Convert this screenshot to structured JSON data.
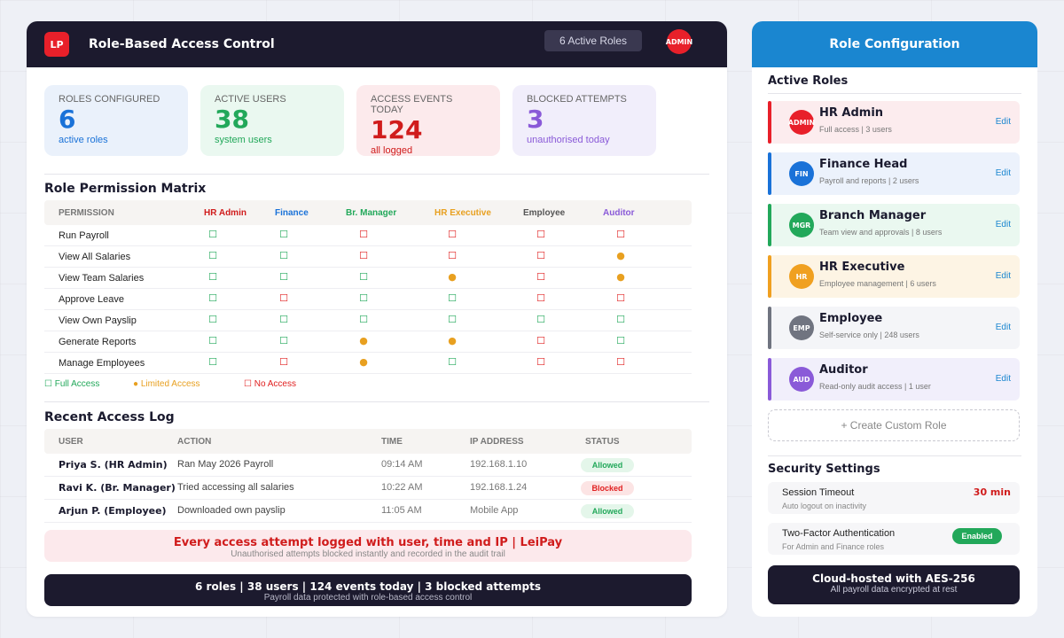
{
  "header": {
    "logo": "LP",
    "title": "Role-Based Access Control",
    "active_roles": "6 Active Roles",
    "user_badge": "ADMIN"
  },
  "stats": [
    {
      "label": "ROLES CONFIGURED",
      "value": "6",
      "sub": "active roles",
      "color": "#1a72d8",
      "bg": "#eaf1fb"
    },
    {
      "label": "ACTIVE USERS",
      "value": "38",
      "sub": "system users",
      "color": "#22a85a",
      "bg": "#eaf8f0"
    },
    {
      "label": "ACCESS EVENTS TODAY",
      "value": "124",
      "sub": "all logged",
      "color": "#d01c1c",
      "bg": "#fceaec"
    },
    {
      "label": "BLOCKED ATTEMPTS",
      "value": "3",
      "sub": "unauthorised today",
      "color": "#8a5ad8",
      "bg": "#f1eefb"
    }
  ],
  "matrix": {
    "title": "Role Permission Matrix",
    "permission_header": "PERMISSION",
    "roles": [
      {
        "name": "HR Admin",
        "color": "#d01c1c"
      },
      {
        "name": "Finance",
        "color": "#1a72d8"
      },
      {
        "name": "Br. Manager",
        "color": "#22a85a"
      },
      {
        "name": "HR Executive",
        "color": "#e8a020"
      },
      {
        "name": "Employee",
        "color": "#555555"
      },
      {
        "name": "Auditor",
        "color": "#8a5ad8"
      }
    ],
    "rows": [
      {
        "permission": "Run Payroll",
        "cells": [
          "full",
          "full",
          "none",
          "none",
          "none",
          "none"
        ]
      },
      {
        "permission": "View All Salaries",
        "cells": [
          "full",
          "full",
          "none",
          "none",
          "none",
          "limited"
        ]
      },
      {
        "permission": "View Team Salaries",
        "cells": [
          "full",
          "full",
          "full",
          "limited",
          "none",
          "limited"
        ]
      },
      {
        "permission": "Approve Leave",
        "cells": [
          "full",
          "none",
          "full",
          "full",
          "none",
          "none"
        ]
      },
      {
        "permission": "View Own Payslip",
        "cells": [
          "full",
          "full",
          "full",
          "full",
          "full",
          "full"
        ]
      },
      {
        "permission": "Generate Reports",
        "cells": [
          "full",
          "full",
          "limited",
          "limited",
          "none",
          "full"
        ]
      },
      {
        "permission": "Manage Employees",
        "cells": [
          "full",
          "none",
          "limited",
          "full",
          "none",
          "none"
        ]
      }
    ],
    "symbols": {
      "full": "☐",
      "limited": "●",
      "none": "☐"
    },
    "legend": {
      "full": "☐ Full Access",
      "limited": "● Limited Access",
      "none": "☐ No Access"
    }
  },
  "log": {
    "title": "Recent Access Log",
    "headers": [
      "USER",
      "ACTION",
      "TIME",
      "IP ADDRESS",
      "STATUS"
    ],
    "rows": [
      {
        "user": "Priya S. (HR Admin)",
        "action": "Ran May 2026 Payroll",
        "time": "09:14 AM",
        "ip": "192.168.1.10",
        "status": "Allowed"
      },
      {
        "user": "Ravi K. (Br. Manager)",
        "action": "Tried accessing all salaries",
        "time": "10:22 AM",
        "ip": "192.168.1.24",
        "status": "Blocked"
      },
      {
        "user": "Arjun P. (Employee)",
        "action": "Downloaded own payslip",
        "time": "11:05 AM",
        "ip": "Mobile App",
        "status": "Allowed"
      }
    ]
  },
  "notice": {
    "main": "Every access attempt logged with user, time and IP | LeiPay",
    "sub": "Unauthorised attempts blocked instantly and recorded in the audit trail"
  },
  "summary": {
    "main": "6 roles | 38 users | 124 events today | 3 blocked attempts",
    "sub": "Payroll data protected with role-based access control"
  },
  "config": {
    "title": "Role Configuration",
    "active_roles_title": "Active Roles",
    "roles": [
      {
        "name": "HR Admin",
        "desc": "Full access | 3 users",
        "avatar": "ADMIN",
        "color": "#e8202a",
        "bg": "#fcecee",
        "edit": "Edit"
      },
      {
        "name": "Finance Head",
        "desc": "Payroll and reports | 2 users",
        "avatar": "FIN",
        "color": "#1a72d8",
        "bg": "#ecf2fc",
        "edit": "Edit"
      },
      {
        "name": "Branch Manager",
        "desc": "Team view and approvals | 8 users",
        "avatar": "MGR",
        "color": "#22a85a",
        "bg": "#eaf8f0",
        "edit": "Edit"
      },
      {
        "name": "HR Executive",
        "desc": "Employee management | 6 users",
        "avatar": "HR",
        "color": "#f0a020",
        "bg": "#fdf4e4",
        "edit": "Edit"
      },
      {
        "name": "Employee",
        "desc": "Self-service only | 248 users",
        "avatar": "EMP",
        "color": "#707480",
        "bg": "#f4f5f8",
        "edit": "Edit"
      },
      {
        "name": "Auditor",
        "desc": "Read-only audit access | 1 user",
        "avatar": "AUD",
        "color": "#8a5ad8",
        "bg": "#f1effb",
        "edit": "Edit"
      }
    ],
    "create_role": "+ Create Custom Role",
    "security_title": "Security Settings",
    "settings": [
      {
        "name": "Session Timeout",
        "desc": "Auto logout on inactivity",
        "value": "30 min"
      },
      {
        "name": "Two-Factor Authentication",
        "desc": "For Admin and Finance roles",
        "value": "Enabled"
      }
    ],
    "cloud": {
      "main": "Cloud-hosted with AES-256",
      "sub": "All payroll data encrypted at rest"
    }
  }
}
